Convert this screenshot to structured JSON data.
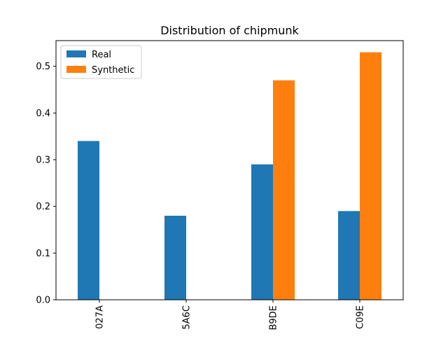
{
  "chart_data": {
    "type": "bar",
    "title": "Distribution of chipmunk",
    "xlabel": "",
    "ylabel": "",
    "categories": [
      "027A",
      "5A6C",
      "B9DE",
      "C09E"
    ],
    "series": [
      {
        "name": "Real",
        "values": [
          0.34,
          0.18,
          0.29,
          0.19
        ],
        "color": "#1f77b4"
      },
      {
        "name": "Synthetic",
        "values": [
          0.0,
          0.0,
          0.47,
          0.53
        ],
        "color": "#ff7f0e"
      }
    ],
    "ylim": [
      0,
      0.555
    ],
    "yticks": [
      0.0,
      0.1,
      0.2,
      0.3,
      0.4,
      0.5
    ],
    "ytick_labels": [
      "0.0",
      "0.1",
      "0.2",
      "0.3",
      "0.4",
      "0.5"
    ],
    "grid": false,
    "legend_position": "top-left"
  }
}
